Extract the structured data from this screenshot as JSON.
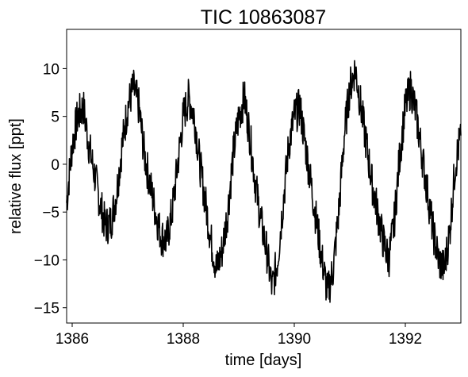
{
  "chart_data": {
    "type": "line",
    "title": "TIC 10863087",
    "xlabel": "time [days]",
    "ylabel": "relative flux [ppt]",
    "xlim": [
      1385.9,
      1393.0
    ],
    "ylim": [
      -16.6,
      14.1
    ],
    "xticks": [
      1386,
      1388,
      1390,
      1392
    ],
    "yticks": [
      -15,
      -10,
      -5,
      0,
      5,
      10
    ],
    "grid": false,
    "series": [
      {
        "color": "#000000",
        "x": [
          1385.9,
          1386.0,
          1386.1,
          1386.2,
          1386.3,
          1386.4,
          1386.5,
          1386.6,
          1386.7,
          1386.8,
          1386.9,
          1387.0,
          1387.1,
          1387.2,
          1387.3,
          1387.4,
          1387.5,
          1387.6,
          1387.7,
          1387.8,
          1387.9,
          1388.0,
          1388.1,
          1388.2,
          1388.3,
          1388.4,
          1388.5,
          1388.6,
          1388.7,
          1388.8,
          1388.9,
          1389.0,
          1389.1,
          1389.2,
          1389.3,
          1389.4,
          1389.5,
          1389.6,
          1389.7,
          1389.8,
          1389.9,
          1390.0,
          1390.1,
          1390.2,
          1390.3,
          1390.4,
          1390.5,
          1390.6,
          1390.7,
          1390.8,
          1390.9,
          1391.0,
          1391.1,
          1391.2,
          1391.3,
          1391.4,
          1391.5,
          1391.6,
          1391.7,
          1391.8,
          1391.9,
          1392.0,
          1392.1,
          1392.2,
          1392.3,
          1392.4,
          1392.5,
          1392.6,
          1392.7,
          1392.8,
          1392.9,
          1393.0
        ],
        "y": [
          -4.0,
          2.0,
          5.0,
          6.0,
          2.0,
          -1.0,
          -4.0,
          -6.5,
          -6.0,
          -3.0,
          2.0,
          6.0,
          8.0,
          6.0,
          1.0,
          -2.0,
          -5.0,
          -7.5,
          -8.0,
          -5.0,
          0.0,
          5.0,
          7.0,
          5.0,
          0.0,
          -4.0,
          -8.0,
          -11.0,
          -9.0,
          -5.0,
          1.0,
          5.0,
          7.0,
          3.0,
          -2.0,
          -6.0,
          -9.0,
          -13.0,
          -10.0,
          -4.0,
          2.0,
          5.0,
          6.0,
          2.0,
          -2.0,
          -6.0,
          -10.0,
          -13.5,
          -11.0,
          -5.0,
          3.0,
          8.0,
          10.0,
          6.0,
          2.0,
          -2.0,
          -5.0,
          -8.0,
          -10.0,
          -6.0,
          1.0,
          6.0,
          8.0,
          5.0,
          1.0,
          -3.0,
          -7.0,
          -10.0,
          -11.0,
          -7.0,
          0.0,
          3.0
        ]
      }
    ]
  }
}
